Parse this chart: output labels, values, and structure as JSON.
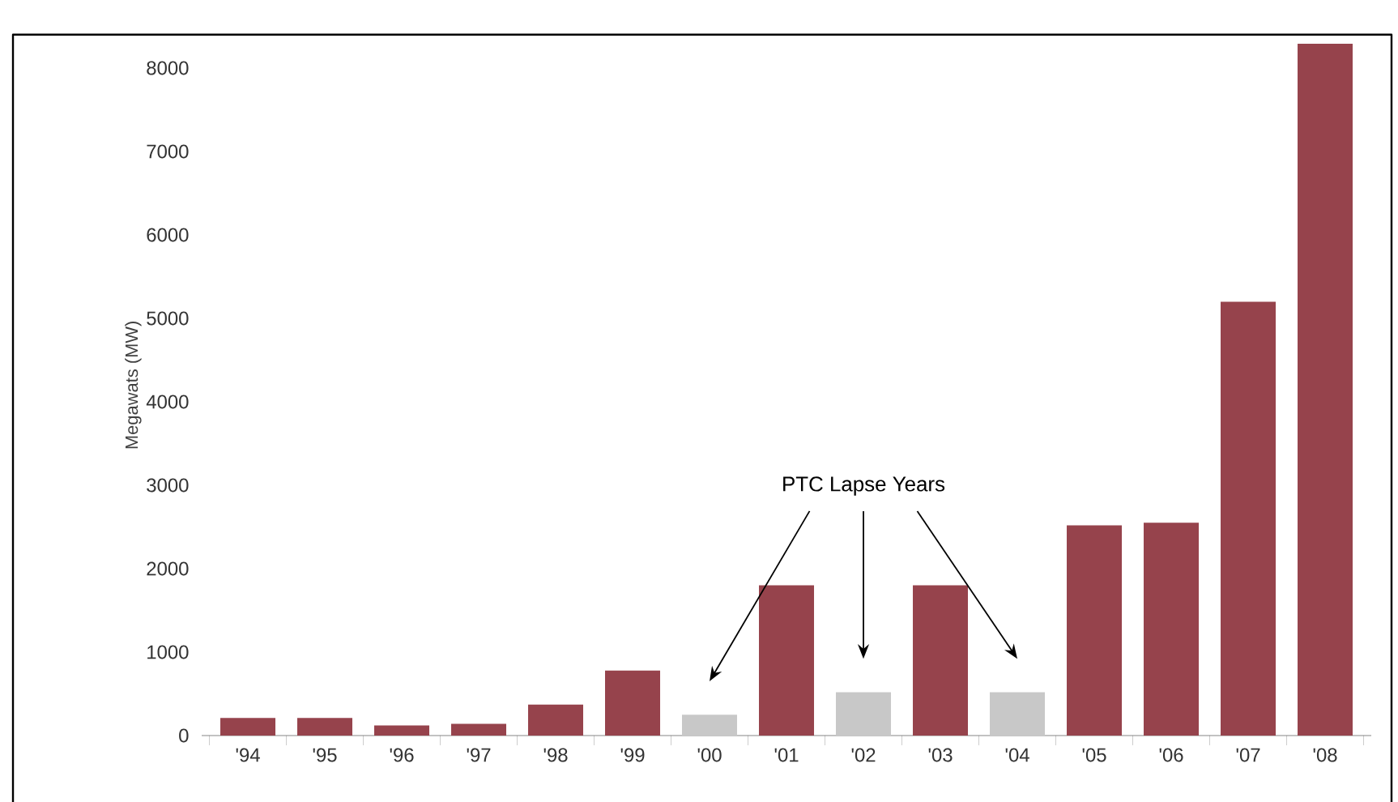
{
  "chart_data": {
    "type": "bar",
    "categories": [
      "'94",
      "'95",
      "'96",
      "'97",
      "'98",
      "'99",
      "'00",
      "'01",
      "'02",
      "'03",
      "'04",
      "'05",
      "'06",
      "'07",
      "'08"
    ],
    "values": [
      210,
      210,
      120,
      140,
      370,
      780,
      250,
      1800,
      520,
      1800,
      520,
      2520,
      2550,
      5200,
      8290
    ],
    "colors": [
      "#96434c",
      "#96434c",
      "#96434c",
      "#96434c",
      "#96434c",
      "#96434c",
      "#c8c8c8",
      "#96434c",
      "#c8c8c8",
      "#96434c",
      "#c8c8c8",
      "#96434c",
      "#96434c",
      "#96434c",
      "#96434c"
    ],
    "ylabel": "Megawats (MW)",
    "ylim": [
      0,
      8400
    ],
    "yticks": [
      0,
      1000,
      2000,
      3000,
      4000,
      5000,
      6000,
      7000,
      8000
    ],
    "annotations": [
      "PTC Lapse Years"
    ]
  }
}
